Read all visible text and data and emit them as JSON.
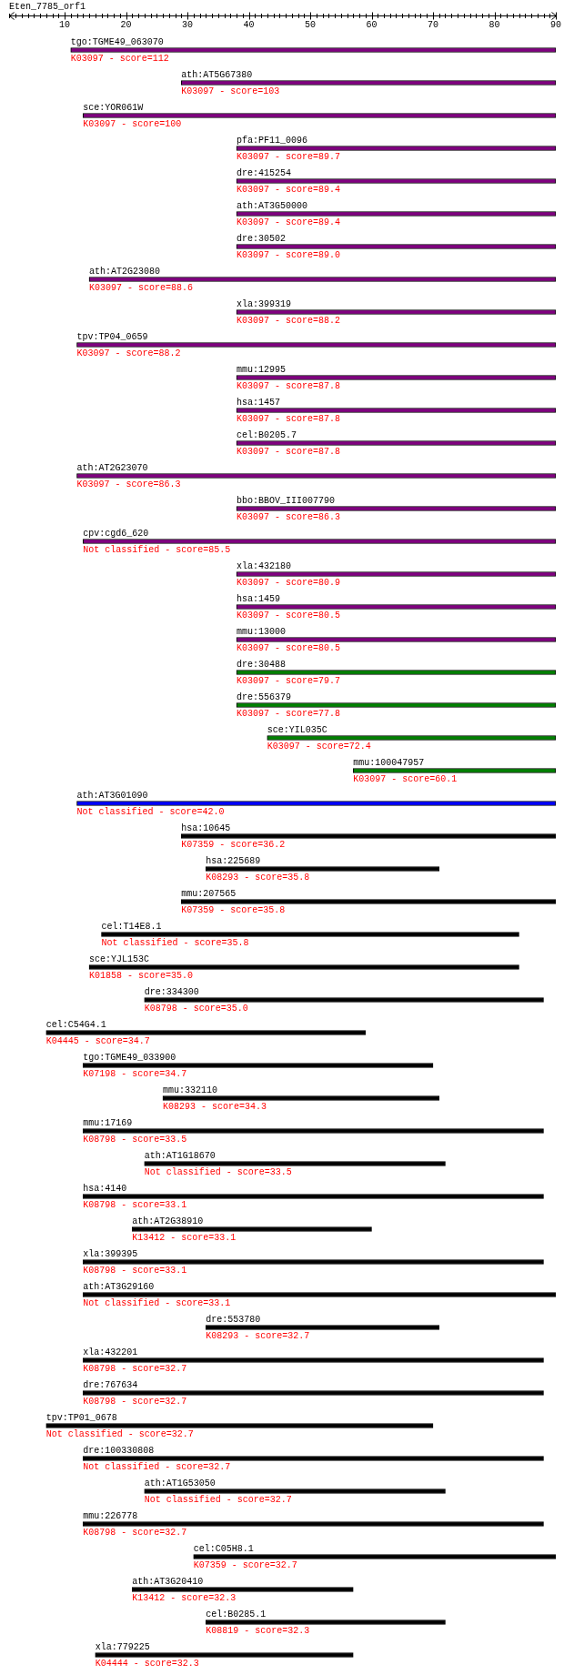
{
  "chart_data": {
    "type": "bar",
    "orientation": "horizontal",
    "title": "Eten_7785_orf1",
    "categories": [
      "tgo:TGME49_063070",
      "ath:AT5G67380",
      "sce:YOR061W",
      "pfa:PF11_0096",
      "dre:415254",
      "ath:AT3G50000",
      "dre:30502",
      "ath:AT2G23080",
      "xla:399319",
      "tpv:TP04_0659",
      "mmu:12995",
      "hsa:1457",
      "cel:B0205.7",
      "ath:AT2G23070",
      "bbo:BBOV_III007790",
      "cpv:cgd6_620",
      "xla:432180",
      "hsa:1459",
      "mmu:13000",
      "dre:30488",
      "dre:556379",
      "sce:YIL035C",
      "mmu:100047957",
      "ath:AT3G01090",
      "hsa:10645",
      "hsa:225689",
      "mmu:207565",
      "cel:T14E8.1",
      "sce:YJL153C",
      "dre:334300",
      "cel:C54G4.1",
      "tgo:TGME49_033900",
      "mmu:332110",
      "mmu:17169",
      "ath:AT1G18670",
      "hsa:4140",
      "ath:AT2G38910",
      "xla:399395",
      "ath:AT3G29160",
      "dre:553780",
      "xla:432201",
      "dre:767634",
      "tpv:TP01_0678",
      "dre:100330808",
      "ath:AT1G53050",
      "mmu:226778",
      "cel:C05H8.1",
      "ath:AT3G20410",
      "cel:B0285.1",
      "xla:779225"
    ],
    "base": [
      11,
      29,
      13,
      38,
      38,
      38,
      38,
      14,
      38,
      12,
      38,
      38,
      38,
      12,
      38,
      13,
      38,
      38,
      38,
      38,
      38,
      43,
      57,
      12,
      29,
      33,
      29,
      16,
      14,
      23,
      7,
      13,
      26,
      13,
      23,
      13,
      21,
      13,
      13,
      33,
      13,
      13,
      7,
      13,
      23,
      13,
      31,
      21,
      33,
      15
    ],
    "values": [
      79,
      61,
      77,
      52,
      52,
      52,
      52,
      76,
      52,
      78,
      52,
      52,
      52,
      78,
      52,
      77,
      52,
      52,
      52,
      52,
      52,
      47,
      33,
      78,
      61,
      38,
      61,
      68,
      70,
      65,
      52,
      57,
      45,
      75,
      49,
      75,
      39,
      75,
      77,
      38,
      75,
      75,
      63,
      75,
      49,
      75,
      59,
      36,
      39,
      42
    ],
    "colors": [
      "#800080",
      "#800080",
      "#800080",
      "#800080",
      "#800080",
      "#800080",
      "#800080",
      "#800080",
      "#800080",
      "#800080",
      "#800080",
      "#800080",
      "#800080",
      "#800080",
      "#800080",
      "#800080",
      "#800080",
      "#800080",
      "#800080",
      "#008000",
      "#008000",
      "#008000",
      "#008000",
      "#0000ff",
      "#000000",
      "#000000",
      "#000000",
      "#000000",
      "#000000",
      "#000000",
      "#000000",
      "#000000",
      "#000000",
      "#000000",
      "#000000",
      "#000000",
      "#000000",
      "#000000",
      "#000000",
      "#000000",
      "#000000",
      "#000000",
      "#000000",
      "#000000",
      "#000000",
      "#000000",
      "#000000",
      "#000000",
      "#000000",
      "#000000"
    ],
    "xlim": [
      1,
      90
    ],
    "xticks": [
      {
        "value": 1,
        "label": null
      },
      {
        "value": 2,
        "label": null
      },
      {
        "value": 3,
        "label": null
      },
      {
        "value": 4,
        "label": null
      },
      {
        "value": 5,
        "label": null
      },
      {
        "value": 6,
        "label": null
      },
      {
        "value": 7,
        "label": null
      },
      {
        "value": 8,
        "label": null
      },
      {
        "value": 9,
        "label": null
      },
      10,
      {
        "value": 11,
        "label": null
      },
      {
        "value": 12,
        "label": null
      },
      {
        "value": 13,
        "label": null
      },
      {
        "value": 14,
        "label": null
      },
      {
        "value": 15,
        "label": null
      },
      {
        "value": 16,
        "label": null
      },
      {
        "value": 17,
        "label": null
      },
      {
        "value": 18,
        "label": null
      },
      {
        "value": 19,
        "label": null
      },
      20,
      {
        "value": 21,
        "label": null
      },
      {
        "value": 22,
        "label": null
      },
      {
        "value": 23,
        "label": null
      },
      {
        "value": 24,
        "label": null
      },
      {
        "value": 25,
        "label": null
      },
      {
        "value": 26,
        "label": null
      },
      {
        "value": 27,
        "label": null
      },
      {
        "value": 28,
        "label": null
      },
      {
        "value": 29,
        "label": null
      },
      30,
      {
        "value": 31,
        "label": null
      },
      {
        "value": 32,
        "label": null
      },
      {
        "value": 33,
        "label": null
      },
      {
        "value": 34,
        "label": null
      },
      {
        "value": 35,
        "label": null
      },
      {
        "value": 36,
        "label": null
      },
      {
        "value": 37,
        "label": null
      },
      {
        "value": 38,
        "label": null
      },
      {
        "value": 39,
        "label": null
      },
      40,
      {
        "value": 41,
        "label": null
      },
      {
        "value": 42,
        "label": null
      },
      {
        "value": 43,
        "label": null
      },
      {
        "value": 44,
        "label": null
      },
      {
        "value": 45,
        "label": null
      },
      {
        "value": 46,
        "label": null
      },
      {
        "value": 47,
        "label": null
      },
      {
        "value": 48,
        "label": null
      },
      {
        "value": 49,
        "label": null
      },
      50,
      {
        "value": 51,
        "label": null
      },
      {
        "value": 52,
        "label": null
      },
      {
        "value": 53,
        "label": null
      },
      {
        "value": 54,
        "label": null
      },
      {
        "value": 55,
        "label": null
      },
      {
        "value": 56,
        "label": null
      },
      {
        "value": 57,
        "label": null
      },
      {
        "value": 58,
        "label": null
      },
      {
        "value": 59,
        "label": null
      },
      60,
      {
        "value": 61,
        "label": null
      },
      {
        "value": 62,
        "label": null
      },
      {
        "value": 63,
        "label": null
      },
      {
        "value": 64,
        "label": null
      },
      {
        "value": 65,
        "label": null
      },
      {
        "value": 66,
        "label": null
      },
      {
        "value": 67,
        "label": null
      },
      {
        "value": 68,
        "label": null
      },
      {
        "value": 69,
        "label": null
      },
      70,
      {
        "value": 71,
        "label": null
      },
      {
        "value": 72,
        "label": null
      },
      {
        "value": 73,
        "label": null
      },
      {
        "value": 74,
        "label": null
      },
      {
        "value": 75,
        "label": null
      },
      {
        "value": 76,
        "label": null
      },
      {
        "value": 77,
        "label": null
      },
      {
        "value": 78,
        "label": null
      },
      {
        "value": 79,
        "label": null
      },
      80,
      {
        "value": 81,
        "label": null
      },
      {
        "value": 82,
        "label": null
      },
      {
        "value": 83,
        "label": null
      },
      {
        "value": 84,
        "label": null
      },
      {
        "value": 85,
        "label": null
      },
      {
        "value": 86,
        "label": null
      },
      {
        "value": 87,
        "label": null
      },
      {
        "value": 88,
        "label": null
      },
      {
        "value": 89,
        "label": null
      },
      90
    ],
    "annotations": [
      "K03097 - score=112",
      "K03097 - score=103",
      "K03097 - score=100",
      "K03097 - score=89.7",
      "K03097 - score=89.4",
      "K03097 - score=89.4",
      "K03097 - score=89.0",
      "K03097 - score=88.6",
      "K03097 - score=88.2",
      "K03097 - score=88.2",
      "K03097 - score=87.8",
      "K03097 - score=87.8",
      "K03097 - score=87.8",
      "K03097 - score=86.3",
      "K03097 - score=86.3",
      "Not classified - score=85.5",
      "K03097 - score=80.9",
      "K03097 - score=80.5",
      "K03097 - score=80.5",
      "K03097 - score=79.7",
      "K03097 - score=77.8",
      "K03097 - score=72.4",
      "K03097 - score=60.1",
      "Not classified - score=42.0",
      "K07359 - score=36.2",
      "K08293 - score=35.8",
      "K07359 - score=35.8",
      "Not classified - score=35.8",
      "K01858 - score=35.0",
      "K08798 - score=35.0",
      "K04445 - score=34.7",
      "K07198 - score=34.7",
      "K08293 - score=34.3",
      "K08798 - score=33.5",
      "Not classified - score=33.5",
      "K08798 - score=33.1",
      "K13412 - score=33.1",
      "K08798 - score=33.1",
      "Not classified - score=33.1",
      "K08293 - score=32.7",
      "K08798 - score=32.7",
      "K08798 - score=32.7",
      "Not classified - score=32.7",
      "Not classified - score=32.7",
      "Not classified - score=32.7",
      "K08798 - score=32.7",
      "K07359 - score=32.7",
      "K13412 - score=32.3",
      "K08819 - score=32.3",
      "K04444 - score=32.3"
    ]
  }
}
